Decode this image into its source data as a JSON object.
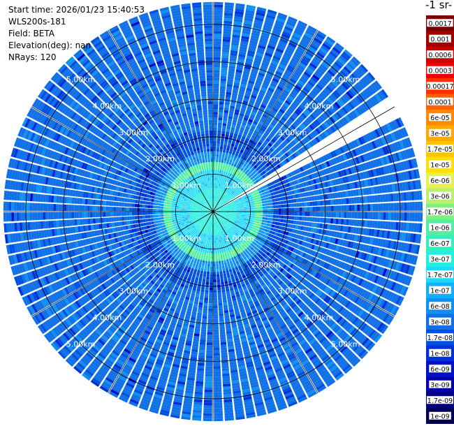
{
  "header": {
    "start_time": "Start time: 2026/01/23 15:40:53",
    "instrument": "WLS200s-181",
    "field": "Field: BETA",
    "elevation": "Elevation(deg): nan",
    "nrays": "NRays: 120"
  },
  "colorbar": {
    "unit_label": "-1 sr-",
    "ticks": [
      "0.0017",
      "0.001",
      "0.0006",
      "0.0003",
      "0.00017",
      "0.0001",
      "6e-05",
      "3e-05",
      "1.7e-05",
      "1e-05",
      "6e-06",
      "3e-06",
      "1.7e-06",
      "1e-06",
      "6e-07",
      "3e-07",
      "1.7e-07",
      "1e-07",
      "6e-08",
      "3e-08",
      "1.7e-08",
      "1e-08",
      "6e-09",
      "3e-09",
      "1.7e-09",
      "1e-09"
    ],
    "colors": [
      "#7a0000",
      "#a00000",
      "#c80000",
      "#f00000",
      "#ff3000",
      "#ff6000",
      "#ff8a00",
      "#ffaa00",
      "#ffc400",
      "#ffe000",
      "#e8f050",
      "#b8f070",
      "#80f080",
      "#50f0a0",
      "#30f0c0",
      "#20f0e0",
      "#20d8ff",
      "#10b0ff",
      "#1090f0",
      "#1070e8",
      "#0050e0",
      "#0030d8",
      "#0010c8",
      "#0000a8",
      "#000080",
      "#000050"
    ]
  },
  "chart_data": {
    "type": "ppi",
    "field": "BETA",
    "nrays": 120,
    "range_rings_km": [
      1,
      2,
      3,
      4,
      5
    ],
    "ring_labels": [
      "1.00km",
      "2.00km",
      "3.00km",
      "4.00km",
      "5.00km"
    ],
    "max_range_km": 5.6,
    "spokes_deg": [
      0,
      30,
      60,
      90,
      120,
      150,
      180,
      210,
      240,
      270,
      300,
      330
    ],
    "ring_label_bearings_deg": [
      45,
      135,
      225,
      315
    ],
    "blank_sector_deg": [
      56,
      62
    ],
    "zones": [
      {
        "from_km": 0.0,
        "to_km": 0.6,
        "level": "3e-07"
      },
      {
        "from_km": 0.6,
        "to_km": 1.1,
        "level": "1.7e-07"
      },
      {
        "from_km": 1.1,
        "to_km": 1.3,
        "level": "1e-06"
      },
      {
        "from_km": 1.3,
        "to_km": 1.6,
        "level": "6e-08"
      },
      {
        "from_km": 1.6,
        "to_km": 2.2,
        "level": "1.7e-08"
      },
      {
        "from_km": 2.2,
        "to_km": 5.6,
        "level": "3e-08"
      }
    ],
    "colorbar_min": "1e-09",
    "colorbar_max": "0.0017",
    "grid": true
  }
}
